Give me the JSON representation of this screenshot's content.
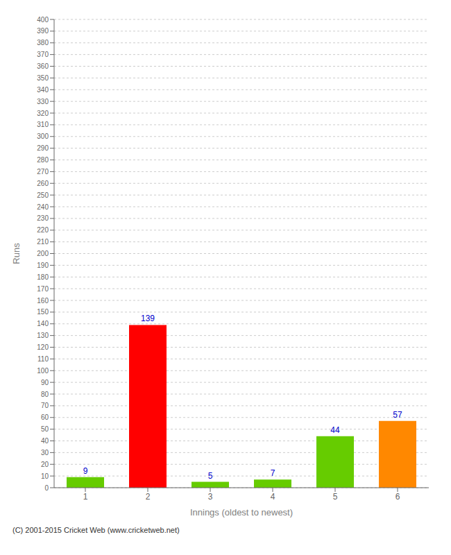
{
  "chart_data": {
    "type": "bar",
    "categories": [
      "1",
      "2",
      "3",
      "4",
      "5",
      "6"
    ],
    "values": [
      9,
      139,
      5,
      7,
      44,
      57
    ],
    "colors": [
      "#66cc00",
      "#ff0000",
      "#66cc00",
      "#66cc00",
      "#66cc00",
      "#ff8800"
    ],
    "xlabel": "Innings (oldest to newest)",
    "ylabel": "Runs",
    "ylim": [
      0,
      400
    ],
    "yticks": [
      0,
      10,
      20,
      30,
      40,
      50,
      60,
      70,
      80,
      90,
      100,
      110,
      120,
      130,
      140,
      150,
      160,
      170,
      180,
      190,
      200,
      210,
      220,
      230,
      240,
      250,
      260,
      270,
      280,
      290,
      300,
      310,
      320,
      330,
      340,
      350,
      360,
      370,
      380,
      390,
      400
    ],
    "grid": true,
    "data_labels": true,
    "annotations": [
      "(C) 2001-2015 Cricket Web (www.cricketweb.net)"
    ]
  }
}
